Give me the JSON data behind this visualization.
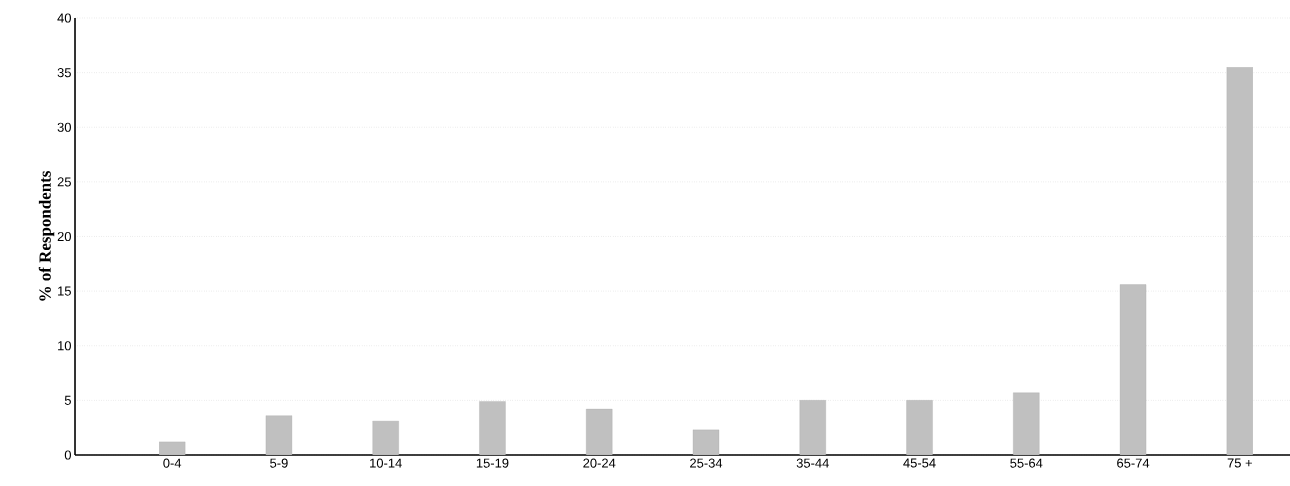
{
  "chart_data": {
    "type": "bar",
    "ylabel": "% of Respondents",
    "categories": [
      "0-4",
      "5-9",
      "10-14",
      "15-19",
      "20-24",
      "25-34",
      "35-44",
      "45-54",
      "55-64",
      "65-74",
      "75 +"
    ],
    "values": [
      1.2,
      3.6,
      3.1,
      4.9,
      4.2,
      2.3,
      5.0,
      5.0,
      5.7,
      15.6,
      35.5
    ],
    "color": "#c0c0c0",
    "ylim": [
      0,
      40
    ],
    "yticks": [
      0,
      5,
      10,
      15,
      20,
      25,
      30,
      35,
      40
    ],
    "grid": "y"
  }
}
